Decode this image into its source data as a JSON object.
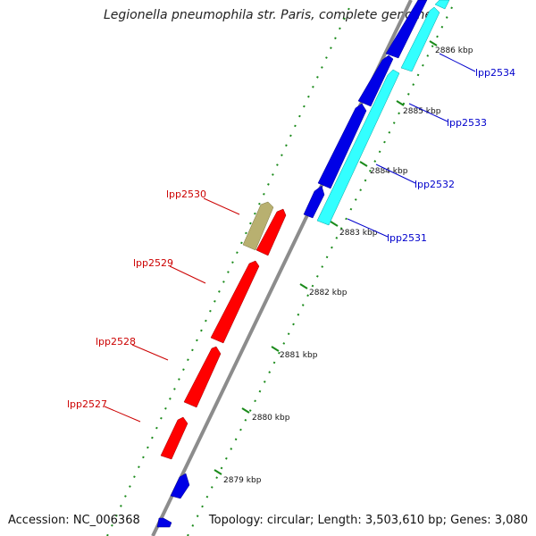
{
  "title": "Legionella pneumophila str. Paris, complete genome",
  "accession": "Accession: NC_006368",
  "topology": "Topology: circular; Length: 3,503,610 bp; Genes: 3,080",
  "colors": {
    "backbone": "#8c8c8c",
    "ticks": "#1a8a1a",
    "forward_gene": "#0000e6",
    "forward_gene_alt": "#33ffff",
    "reverse_gene": "#ff0000",
    "reverse_gene_alt": "#b8b070",
    "label_forward": "#0000cc",
    "label_reverse": "#cc0000"
  },
  "ticks": [
    "2879 kbp",
    "2880 kbp",
    "2881 kbp",
    "2882 kbp",
    "2883 kbp",
    "2884 kbp",
    "2885 kbp",
    "2886 kbp"
  ],
  "genes_forward": [
    {
      "label": "lpp2531",
      "color": "cyan"
    },
    {
      "label": "lpp2532",
      "color": "blue"
    },
    {
      "label": "lpp2533",
      "color": "cyan"
    },
    {
      "label": "lpp2534",
      "color": "blue"
    }
  ],
  "genes_reverse": [
    {
      "label": "lpp2527",
      "color": "red"
    },
    {
      "label": "lpp2528",
      "color": "red"
    },
    {
      "label": "lpp2529",
      "color": "red"
    },
    {
      "label": "lpp2530",
      "color": "khaki"
    }
  ]
}
